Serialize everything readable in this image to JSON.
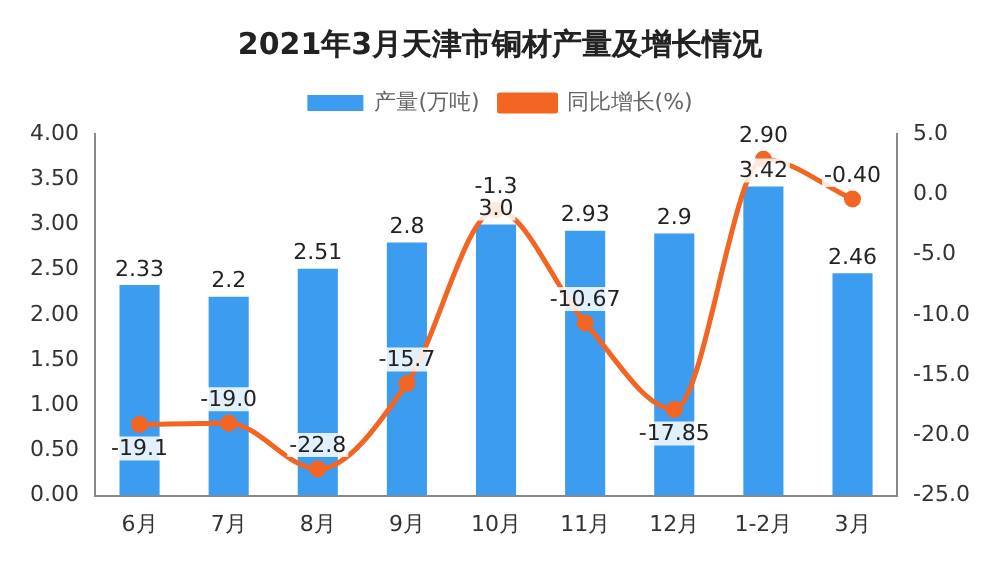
{
  "chart_data": {
    "type": "bar",
    "title": "2021年3月天津市铜材产量及增长情况",
    "categories": [
      "6月",
      "7月",
      "8月",
      "9月",
      "10月",
      "11月",
      "12月",
      "1-2月",
      "3月"
    ],
    "series": [
      {
        "name": "产量(万吨)",
        "color": "#3c9cf0",
        "values": [
          2.33,
          2.2,
          2.51,
          2.8,
          3.0,
          2.93,
          2.9,
          3.42,
          2.46
        ],
        "value_labels": [
          "2.33",
          "2.2",
          "2.51",
          "2.8",
          "3.0",
          "2.93",
          "2.9",
          "3.42",
          "2.46"
        ]
      },
      {
        "name": "同比增长(%)",
        "type": "line",
        "axis": "y2",
        "color": "#f26522",
        "marker": "circle",
        "values": [
          -19.1,
          -19.0,
          -22.8,
          -15.7,
          -1.3,
          -10.67,
          -17.85,
          2.9,
          -0.4
        ],
        "value_labels": [
          "-19.1",
          "-19.0",
          "-22.8",
          "-15.7",
          "-1.3",
          "-10.67",
          "-17.85",
          "2.90",
          "-0.40"
        ]
      }
    ],
    "ylim": [
      0,
      4
    ],
    "yticks": [
      {
        "value": 0,
        "label": "0.00"
      },
      {
        "value": 0.5,
        "label": "0.50"
      },
      {
        "value": 1,
        "label": "1.00"
      },
      {
        "value": 1.5,
        "label": "1.50"
      },
      {
        "value": 2,
        "label": "2.00"
      },
      {
        "value": 2.5,
        "label": "2.50"
      },
      {
        "value": 3,
        "label": "3.00"
      },
      {
        "value": 3.5,
        "label": "3.50"
      },
      {
        "value": 4,
        "label": "4.00"
      }
    ],
    "y2lim": [
      -25,
      5
    ],
    "y2ticks": [
      {
        "value": -25,
        "label": "-25.0"
      },
      {
        "value": -20,
        "label": "-20.0"
      },
      {
        "value": -15,
        "label": "-15.0"
      },
      {
        "value": -10,
        "label": "-10.0"
      },
      {
        "value": -5,
        "label": "-5.0"
      },
      {
        "value": 0,
        "label": "0.0"
      },
      {
        "value": 5,
        "label": "5.0"
      }
    ],
    "grid": false,
    "legend": "top"
  }
}
